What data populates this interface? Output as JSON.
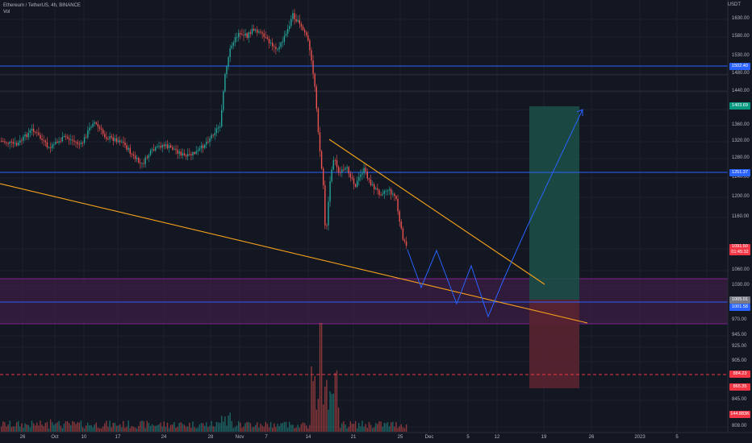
{
  "header": {
    "title": "Ethereum / TetherUS, 4h, BINANCE",
    "indicator": "Vol"
  },
  "currency": "USDT",
  "colors": {
    "background": "#131722",
    "up": "#26a69a",
    "down": "#ef5350",
    "trendline": "#f7a21b",
    "level": "#2962ff",
    "demand_zone": "#4a1f4f",
    "zone_border": "#9c27b0",
    "target_zone": "#1c4d46",
    "stop_zone": "#5a2431",
    "projection": "#2962ff"
  },
  "y_axis": {
    "ticks": [
      "1630.00",
      "1580.00",
      "1530.00",
      "1480.00",
      "1440.00",
      "1400.00",
      "1360.00",
      "1320.00",
      "1280.00",
      "1240.00",
      "1200.00",
      "1160.00",
      "1100.00",
      "1060.00",
      "1030.00",
      "970.00",
      "945.00",
      "925.00",
      "905.00",
      "865.00",
      "845.00",
      "809.00"
    ]
  },
  "x_axis": {
    "ticks": [
      "26",
      "Oct",
      "10",
      "17",
      "24",
      "28",
      "Nov",
      "7",
      "14",
      "21",
      "25",
      "Dec",
      "5",
      "12",
      "19",
      "26",
      "2023",
      "5"
    ]
  },
  "price_labels": [
    {
      "id": "level-1502",
      "text": "1502.40",
      "color": "#2962ff"
    },
    {
      "id": "level-1403",
      "text": "1403.69",
      "color": "#089981"
    },
    {
      "id": "level-1251",
      "text": "1251.37",
      "color": "#2962ff"
    },
    {
      "id": "last-price",
      "text": "1091.50",
      "sub": "01:45:32",
      "color": "#f23645"
    },
    {
      "id": "level-1005",
      "text": "1005.01",
      "color": "#787b86"
    },
    {
      "id": "level-1001",
      "text": "1001.58",
      "color": "#2962ff"
    },
    {
      "id": "level-884",
      "text": "884.23",
      "color": "#f23645"
    },
    {
      "id": "level-865",
      "text": "865.35",
      "color": "#f23645"
    },
    {
      "id": "volume",
      "text": "144.883K",
      "color": "#f23645"
    }
  ]
}
